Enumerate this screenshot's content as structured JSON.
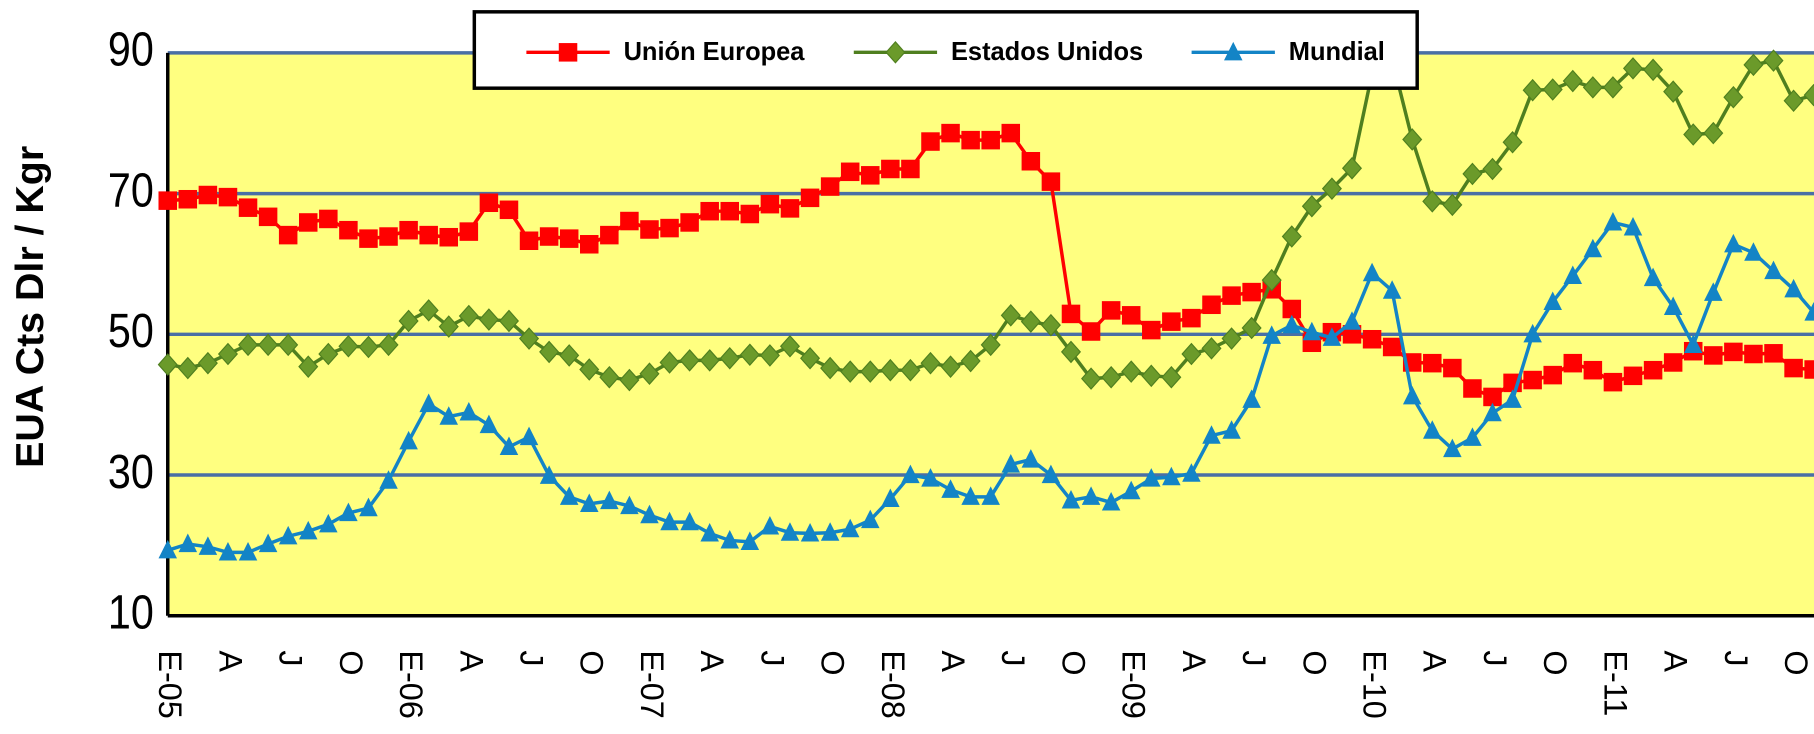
{
  "chart_data": {
    "type": "line",
    "y_axis_label": "EUA Cts Dlr / Kgr",
    "categories": [
      "E-05",
      null,
      null,
      "A",
      null,
      null,
      "J",
      null,
      null,
      "O",
      null,
      null,
      "E-06",
      null,
      null,
      "A",
      null,
      null,
      "J",
      null,
      null,
      "O",
      null,
      null,
      "E-07",
      null,
      null,
      "A",
      null,
      null,
      "J",
      null,
      null,
      "O",
      null,
      null,
      "E-08",
      null,
      null,
      "A",
      null,
      null,
      "J",
      null,
      null,
      "O",
      null,
      null,
      "E-09",
      null,
      null,
      "A",
      null,
      null,
      "J",
      null,
      null,
      "O",
      null,
      null,
      "E-10",
      null,
      null,
      "A",
      null,
      null,
      "J",
      null,
      null,
      "O",
      null,
      null,
      "E-11",
      null,
      null,
      "A",
      null,
      null,
      "J",
      null,
      null,
      "O",
      null
    ],
    "series": [
      {
        "name": "Unión Europea",
        "color": "#ff0000",
        "marker": "square",
        "values": [
          69,
          69.2,
          69.8,
          69.5,
          68,
          66.7,
          64.1,
          65.9,
          66.4,
          64.8,
          63.6,
          63.9,
          64.8,
          64.1,
          63.8,
          64.6,
          68.7,
          67.7,
          63.3,
          63.9,
          63.6,
          62.8,
          64.1,
          66.1,
          64.9,
          65.1,
          65.9,
          67.5,
          67.5,
          67.1,
          68.5,
          67.9,
          69.4,
          71,
          73.1,
          72.6,
          73.5,
          73.5,
          77.4,
          78.6,
          77.6,
          77.6,
          78.6,
          74.6,
          71.7,
          52.9,
          50.4,
          53.4,
          52.7,
          50.6,
          51.8,
          52.3,
          54.2,
          55.5,
          56,
          56.4,
          53.6,
          48.8,
          50.3,
          50,
          49.3,
          48.2,
          46,
          45.9,
          45.2,
          42.3,
          41.1,
          43.1,
          43.5,
          44.2,
          45.9,
          44.9,
          43.2,
          44.1,
          44.9,
          46,
          47.6,
          47,
          47.5,
          47.2,
          47.3,
          45.2,
          45
        ]
      },
      {
        "name": "Estados Unidos",
        "color": "#4f7f1f",
        "marker": "diamond",
        "values": [
          45.7,
          45.2,
          45.9,
          47.2,
          48.5,
          48.5,
          48.5,
          45.4,
          47.2,
          48.3,
          48.2,
          48.5,
          51.9,
          53.4,
          51.1,
          52.6,
          52.1,
          51.9,
          49.4,
          47.5,
          47,
          45,
          43.9,
          43.5,
          44.4,
          46,
          46.3,
          46.3,
          46.6,
          47.1,
          47,
          48.3,
          46.6,
          45.2,
          44.7,
          44.7,
          44.9,
          44.9,
          45.9,
          45.4,
          46.2,
          48.5,
          52.7,
          51.8,
          51.3,
          47.5,
          43.7,
          43.9,
          44.7,
          44.1,
          43.9,
          47.2,
          48,
          49.4,
          50.9,
          57.7,
          63.9,
          68.2,
          70.7,
          73.6,
          87.1,
          89.1,
          77.7,
          68.9,
          68.4,
          72.8,
          73.5,
          77.3,
          84.7,
          84.8,
          86,
          85.1,
          85.1,
          87.8,
          87.6,
          84.5,
          78.4,
          78.6,
          83.7,
          88.3,
          88.9,
          83.2,
          84
        ]
      },
      {
        "name": "Mundial",
        "color": "#1384c6",
        "marker": "triangle",
        "values": [
          19.3,
          20.2,
          19.8,
          19,
          19,
          20.2,
          21.3,
          22,
          23,
          24.6,
          25.3,
          29.2,
          34.8,
          40.1,
          38.3,
          38.9,
          37.1,
          34,
          35.4,
          29.9,
          26.9,
          25.9,
          26.3,
          25.6,
          24.3,
          23.3,
          23.3,
          21.7,
          20.7,
          20.5,
          22.7,
          21.8,
          21.7,
          21.8,
          22.3,
          23.6,
          26.6,
          30,
          29.5,
          27.9,
          26.9,
          26.9,
          31.5,
          32.2,
          30,
          26.4,
          26.9,
          26.1,
          27.7,
          29.5,
          29.7,
          30.2,
          35.6,
          36.3,
          40.7,
          49.8,
          51.3,
          50.3,
          49.5,
          51.8,
          58.7,
          56.2,
          41.2,
          36.3,
          33.7,
          35.3,
          38.8,
          40.7,
          50,
          54.6,
          58.3,
          62.1,
          65.9,
          65.2,
          58,
          53.9,
          48.5,
          55.9,
          62.8,
          61.6,
          59,
          56.4,
          53.1
        ]
      }
    ],
    "ylim": [
      10,
      90
    ],
    "yticks": [
      10,
      30,
      50,
      70,
      90
    ],
    "grid": true,
    "grid_color": "#4a6fa5",
    "plot_background": "#ffff80",
    "legend": "top"
  }
}
